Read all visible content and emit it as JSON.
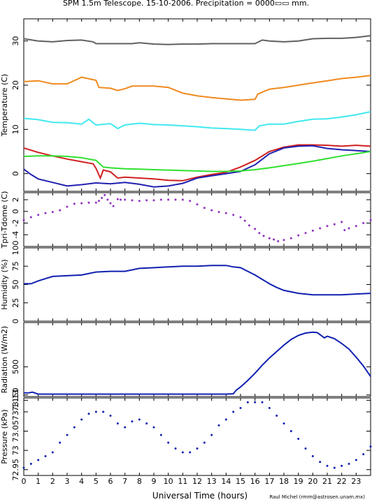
{
  "title": "SPM 1.5m Telescope. 15-10-2006. Precipitation = 0000▭▭ mm.",
  "xlabel": "Universal Time (hours)",
  "credit": "Raul Michel (rmm@astrosen.unam.mx)",
  "chart_data": [
    {
      "type": "line",
      "ylabel": "Temperature (C)",
      "ylim": [
        -4,
        35
      ],
      "yticks": [
        0,
        10,
        20,
        30
      ],
      "xlim": [
        0,
        24
      ],
      "series": [
        {
          "color": "#606060",
          "x": [
            0,
            1,
            2,
            3,
            4,
            4.8,
            5,
            6,
            7,
            7.5,
            8,
            9,
            10,
            11,
            12,
            13,
            14,
            15,
            16,
            16.5,
            17,
            18,
            19,
            20,
            21,
            22,
            23,
            24
          ],
          "y": [
            30.5,
            30,
            29.8,
            30.1,
            30.2,
            29.8,
            29.4,
            29.4,
            29.4,
            29.4,
            29.6,
            29.3,
            29.2,
            29.3,
            29.3,
            29.4,
            29.4,
            29.4,
            29.4,
            30.2,
            30.0,
            29.8,
            30.0,
            30.5,
            30.6,
            30.6,
            30.8,
            31.2
          ]
        },
        {
          "color": "#f08a20",
          "x": [
            0,
            1,
            2,
            3,
            4,
            5,
            5.2,
            6,
            6.5,
            7,
            7.5,
            8,
            9,
            10,
            11,
            12,
            13,
            14,
            15,
            16,
            16.2,
            17,
            18,
            19,
            20,
            21,
            22,
            23,
            24
          ],
          "y": [
            20.8,
            21,
            20.3,
            20.3,
            21.8,
            21.1,
            19.5,
            19.3,
            18.8,
            19.2,
            19.8,
            19.8,
            19.8,
            19.5,
            18.2,
            17.6,
            17.2,
            16.9,
            16.6,
            16.8,
            18.0,
            19.1,
            19.5,
            20,
            20.5,
            21,
            21.5,
            21.8,
            22.2
          ]
        },
        {
          "color": "#40e8f0",
          "x": [
            0,
            1,
            2,
            3,
            4,
            4.5,
            5,
            6,
            6.5,
            7,
            8,
            9,
            10,
            11,
            12,
            13,
            14,
            15,
            16,
            16.3,
            17,
            18,
            19,
            20,
            21,
            22,
            23,
            24
          ],
          "y": [
            12.5,
            12.2,
            11.6,
            11.5,
            11.2,
            12.3,
            11.0,
            11.3,
            10.2,
            11.0,
            11.4,
            11.1,
            11.0,
            10.8,
            10.6,
            10.3,
            10.2,
            10.0,
            9.8,
            10.8,
            11.2,
            11.2,
            11.8,
            12.3,
            12.4,
            12.8,
            13.3,
            14.0
          ]
        },
        {
          "color": "#d02020",
          "x": [
            0,
            1,
            2,
            3,
            4,
            4.8,
            5,
            5.3,
            5.5,
            6,
            6.5,
            7,
            8,
            9,
            10,
            11,
            12,
            13,
            14,
            15,
            16,
            17,
            18,
            19,
            20,
            21,
            22,
            23,
            24
          ],
          "y": [
            5.8,
            4.8,
            4.0,
            3.3,
            2.7,
            2.2,
            1.2,
            -1.0,
            0.8,
            0.4,
            -1.0,
            -0.8,
            -1.0,
            -1.2,
            -1.5,
            -1.6,
            -0.8,
            -0.2,
            0.3,
            1.5,
            3.0,
            5.0,
            6.0,
            6.5,
            6.5,
            6.4,
            6.2,
            6.4,
            6.2
          ]
        },
        {
          "color": "#2020b0",
          "x": [
            0,
            0.5,
            1,
            2,
            3,
            4,
            5,
            6,
            7,
            8,
            9,
            10,
            11,
            12,
            13,
            14,
            15,
            16,
            17,
            18,
            19,
            20,
            21,
            22,
            23,
            24
          ],
          "y": [
            1.0,
            -0.2,
            -1.2,
            -2.0,
            -2.8,
            -2.5,
            -2.1,
            -2.3,
            -2.0,
            -2.4,
            -3.0,
            -2.8,
            -2.2,
            -1.0,
            -0.5,
            0.0,
            0.5,
            2.0,
            4.5,
            5.8,
            6.2,
            6.3,
            5.7,
            5.4,
            5.2,
            5.0
          ]
        },
        {
          "color": "#30e030",
          "x": [
            0,
            1,
            2,
            3,
            4,
            5,
            5.5,
            6,
            7,
            8,
            9,
            10,
            11,
            12,
            13,
            14,
            15,
            16,
            17,
            18,
            19,
            20,
            21,
            22,
            23,
            24
          ],
          "y": [
            3.9,
            4.0,
            4.0,
            3.9,
            3.6,
            3.0,
            1.5,
            1.3,
            1.1,
            1.0,
            0.9,
            0.8,
            0.7,
            0.6,
            0.5,
            0.5,
            0.6,
            0.9,
            1.3,
            1.8,
            2.3,
            2.8,
            3.4,
            4.0,
            4.5,
            5.0
          ]
        }
      ]
    },
    {
      "type": "scatter",
      "ylabel": "Tpri-Tdome (C)",
      "ylim": [
        -6,
        3.2
      ],
      "yticks": [
        -4,
        -2,
        0,
        2
      ],
      "xlim": [
        0,
        24
      ],
      "series": [
        {
          "color": "#9030c0",
          "x": [
            0,
            0.5,
            1,
            1.5,
            2,
            2.5,
            3,
            3.5,
            4,
            4.5,
            5,
            5.2,
            5.4,
            5.6,
            5.8,
            6,
            6.2,
            6.5,
            6.7,
            7,
            7.5,
            8,
            8.5,
            9,
            9.5,
            10,
            10.5,
            11,
            11.5,
            12,
            12.5,
            13,
            13.5,
            14,
            14.5,
            15,
            15.3,
            15.6,
            16,
            16.3,
            16.6,
            17,
            17.3,
            17.6,
            18,
            18.5,
            19,
            19.5,
            20,
            20.5,
            21,
            21.5,
            22,
            22.2,
            22.5,
            23,
            23.5,
            24
          ],
          "y": [
            -1.5,
            -1.0,
            -0.6,
            -0.3,
            -0.1,
            0.2,
            0.8,
            1.3,
            1.4,
            1.5,
            1.5,
            1.8,
            2.3,
            2.8,
            2.0,
            1.4,
            0.9,
            2.1,
            2.0,
            2.0,
            1.9,
            1.8,
            1.9,
            1.9,
            2.0,
            2.0,
            2.0,
            2.0,
            1.8,
            1.2,
            0.6,
            0.2,
            -0.1,
            -0.3,
            -0.6,
            -1.0,
            -1.6,
            -2.4,
            -3.0,
            -3.7,
            -4.2,
            -4.6,
            -4.8,
            -5.1,
            -4.9,
            -4.6,
            -4.1,
            -3.7,
            -3.3,
            -2.9,
            -2.5,
            -2.2,
            -1.8,
            -3.2,
            -2.9,
            -2.5,
            -2.0,
            -1.5
          ]
        }
      ]
    },
    {
      "type": "line",
      "ylabel": "Humidity (%)",
      "ylim": [
        0,
        100
      ],
      "yticks": [
        0,
        25,
        50,
        75,
        100
      ],
      "xlim": [
        0,
        24
      ],
      "series": [
        {
          "color": "#1020b0",
          "x": [
            0,
            0.5,
            1,
            2,
            3,
            4,
            5,
            6,
            7,
            8,
            9,
            10,
            11,
            12,
            13,
            14,
            14.5,
            15,
            15.5,
            16,
            16.5,
            17,
            17.5,
            18,
            19,
            20,
            21,
            22,
            23,
            24
          ],
          "y": [
            51,
            51,
            55,
            61,
            62,
            63,
            67,
            68,
            68,
            72,
            73,
            74,
            75,
            75,
            76,
            76,
            74,
            73,
            68,
            63,
            57,
            51,
            46,
            42,
            38,
            36,
            36,
            36,
            37,
            38
          ]
        }
      ]
    },
    {
      "type": "line",
      "ylabel": "Radiation (W/m2)",
      "ylim": [
        130,
        1050
      ],
      "yticks": [
        150,
        500
      ],
      "xlim": [
        0,
        24
      ],
      "series": [
        {
          "color": "#1020b0",
          "x": [
            0,
            0.3,
            0.6,
            1,
            2,
            3,
            4,
            5,
            6,
            7,
            8,
            9,
            10,
            11,
            12,
            13,
            14,
            14.5,
            14.7,
            15,
            15.5,
            16,
            16.5,
            17,
            17.5,
            18,
            18.5,
            19,
            19.5,
            20,
            20.3,
            20.5,
            20.8,
            21,
            21.5,
            22,
            22.5,
            23,
            23.5,
            24
          ],
          "y": [
            175,
            175,
            185,
            160,
            160,
            160,
            160,
            160,
            160,
            160,
            160,
            160,
            160,
            160,
            160,
            160,
            160,
            165,
            210,
            250,
            330,
            420,
            520,
            610,
            690,
            770,
            840,
            890,
            920,
            930,
            925,
            900,
            860,
            880,
            850,
            790,
            720,
            620,
            510,
            380
          ]
        }
      ]
    },
    {
      "type": "scatter",
      "ylabel": "Pressure (kPa)",
      "ylim": [
        72.935,
        73.136
      ],
      "yticks": [
        72.95,
        73,
        73.05,
        73.1,
        73.13
      ],
      "yticklabels": [
        "72.95",
        "73",
        "73.05",
        "73.1",
        "73.13"
      ],
      "xlim": [
        0,
        24
      ],
      "series": [
        {
          "color": "#1020b0",
          "x": [
            0,
            0.5,
            1,
            1.5,
            2,
            2.5,
            3,
            3.5,
            4,
            4.5,
            5,
            5.5,
            6,
            6.5,
            7,
            7.5,
            8,
            8.5,
            9,
            9.5,
            10,
            10.5,
            11,
            11.5,
            12,
            12.5,
            13,
            13.5,
            14,
            14.5,
            15,
            15.5,
            16,
            16.5,
            17,
            17.5,
            18,
            18.5,
            19,
            19.5,
            20,
            20.5,
            21,
            21.5,
            22,
            22.5,
            23,
            23.5,
            24
          ],
          "y": [
            72.955,
            72.965,
            72.975,
            72.985,
            72.995,
            73.02,
            73.04,
            73.06,
            73.08,
            73.095,
            73.1,
            73.1,
            73.09,
            73.07,
            73.06,
            73.075,
            73.08,
            73.07,
            73.06,
            73.04,
            73.02,
            73.005,
            72.995,
            72.995,
            73.005,
            73.02,
            73.04,
            73.065,
            73.08,
            73.1,
            73.11,
            73.125,
            73.125,
            73.125,
            73.11,
            73.09,
            73.07,
            73.05,
            73.03,
            73.005,
            72.985,
            72.97,
            72.96,
            72.955,
            72.96,
            72.965,
            72.975,
            72.99,
            73.01
          ]
        }
      ]
    }
  ]
}
